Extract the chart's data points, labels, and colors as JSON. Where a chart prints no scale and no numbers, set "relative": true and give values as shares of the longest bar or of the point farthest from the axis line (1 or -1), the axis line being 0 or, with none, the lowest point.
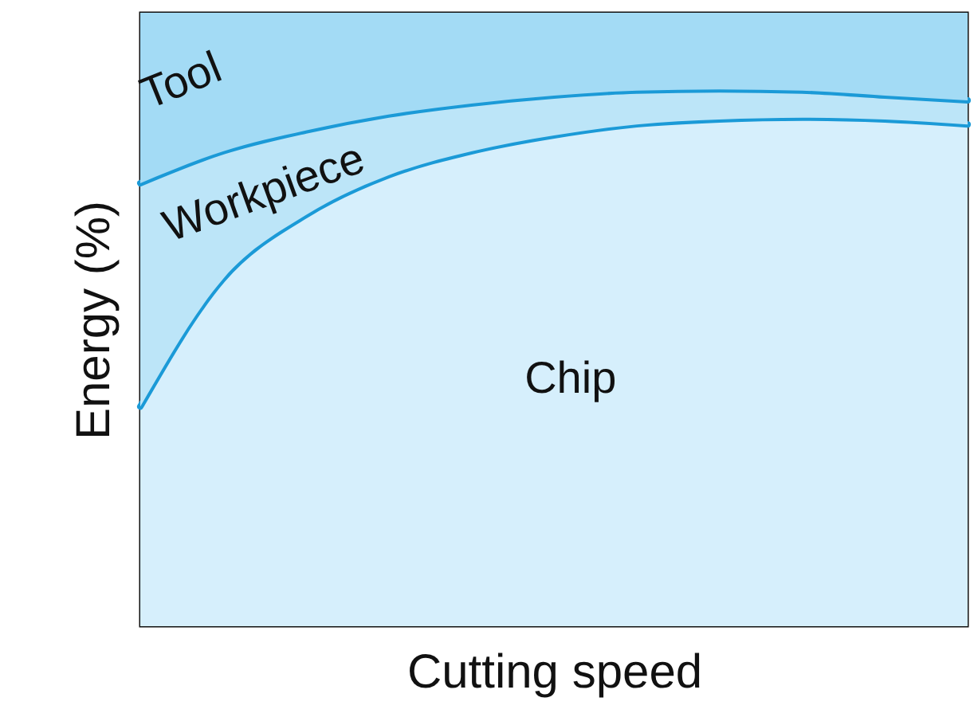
{
  "chart_data": {
    "type": "area",
    "stacked": true,
    "relative": true,
    "xlabel": "Cutting speed",
    "ylabel": "Energy (%)",
    "categories": [
      null,
      null,
      null,
      null,
      null,
      null,
      null,
      null,
      null,
      null,
      null
    ],
    "series": [
      {
        "name": "Chip",
        "color": "#d6effc",
        "values": [
          0.358,
          0.566,
          0.67,
          0.735,
          0.774,
          0.8,
          0.818,
          0.826,
          0.829,
          0.826,
          0.818
        ]
      },
      {
        "name": "Workpiece",
        "color": "#bce5f8",
        "values": [
          0.364,
          0.208,
          0.138,
          0.099,
          0.078,
          0.065,
          0.055,
          0.049,
          0.044,
          0.039,
          0.039
        ]
      },
      {
        "name": "Tool",
        "color": "#a3dbf5",
        "values": [
          0.278,
          0.226,
          0.192,
          0.166,
          0.148,
          0.135,
          0.127,
          0.125,
          0.127,
          0.135,
          0.143
        ]
      }
    ]
  }
}
